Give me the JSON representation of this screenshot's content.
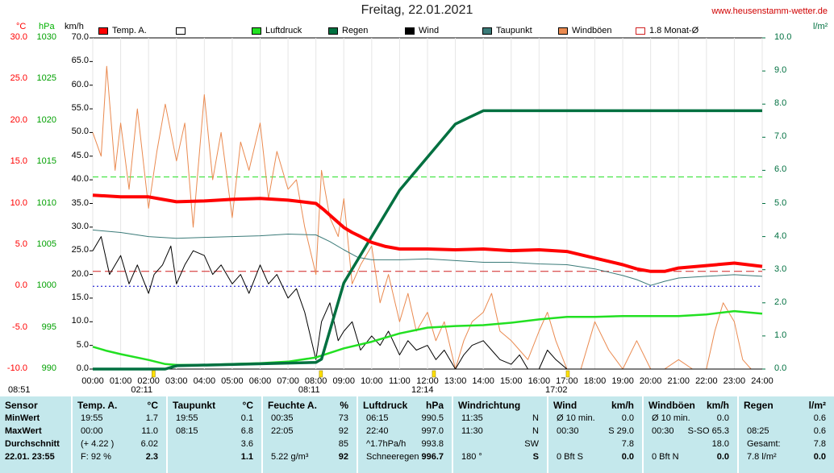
{
  "title": "Freitag, 22.01.2021",
  "site": "www.heusenstamm-wetter.de",
  "units": {
    "temp": "°C",
    "pressure": "hPa",
    "wind": "km/h",
    "rain": "l/m²"
  },
  "colors": {
    "temp": "#ff0000",
    "pressure": "#22e022",
    "rain": "#007040",
    "wind": "#000000",
    "dewpoint": "#3a7a78",
    "gusts": "#ea8a50",
    "monthavg": "#d02020"
  },
  "legend": [
    {
      "label": "Temp. A.",
      "color": "#ff0000",
      "filled": true
    },
    {
      "label": "",
      "color": "#ffffff",
      "filled": false
    },
    {
      "label": "Luftdruck",
      "color": "#22e022",
      "filled": true
    },
    {
      "label": "Regen",
      "color": "#007040",
      "filled": true
    },
    {
      "label": "Wind",
      "color": "#000000",
      "filled": true
    },
    {
      "label": "Taupunkt",
      "color": "#3a7a78",
      "filled": true
    },
    {
      "label": "Windböen",
      "color": "#ea8a50",
      "filled": true
    },
    {
      "label": "1.8 Monat-Ø",
      "color": "#d02020",
      "filled": false
    }
  ],
  "events": [
    {
      "time": "08:51",
      "hour": 0
    },
    {
      "time": "02:11",
      "hour": 2.18
    },
    {
      "time": "08:11",
      "hour": 8.18
    },
    {
      "time": "12:14",
      "hour": 12.23
    },
    {
      "time": "17:02",
      "hour": 17.03
    }
  ],
  "chart_data": {
    "type": "line",
    "x_ticks": [
      "00:00",
      "01:00",
      "02:00",
      "03:00",
      "04:00",
      "05:00",
      "06:00",
      "07:00",
      "08:00",
      "09:00",
      "10:00",
      "11:00",
      "12:00",
      "13:00",
      "14:00",
      "15:00",
      "16:00",
      "17:00",
      "18:00",
      "19:00",
      "20:00",
      "21:00",
      "22:00",
      "23:00",
      "24:00"
    ],
    "xlim": [
      0,
      24
    ],
    "axes": {
      "temp_ticks": [
        "30.0",
        "25.0",
        "20.0",
        "15.0",
        "10.0",
        "5.0",
        "0.0",
        "-5.0",
        "-10.0"
      ],
      "temp_lim": [
        -10,
        30
      ],
      "pressure_ticks": [
        "1030",
        "1025",
        "1020",
        "1015",
        "1010",
        "1005",
        "1000",
        "995",
        "990"
      ],
      "pressure_lim": [
        990,
        1030
      ],
      "wind_ticks": [
        "70.0",
        "65.0",
        "60.0",
        "55.0",
        "50.0",
        "45.0",
        "40.0",
        "35.0",
        "30.0",
        "25.0",
        "20.0",
        "15.0",
        "10.0",
        "5.0",
        "0.0"
      ],
      "wind_lim": [
        0,
        70
      ],
      "rain_ticks": [
        "10.0",
        "9.0",
        "8.0",
        "7.0",
        "6.0",
        "5.0",
        "4.0",
        "3.0",
        "2.0",
        "1.0",
        "0.0"
      ],
      "rain_lim": [
        0,
        10
      ]
    },
    "reference_lines": [
      {
        "name": "1.8 Monat-Ø",
        "axis": "temp",
        "value": 1.8,
        "color": "#d02020"
      },
      {
        "axis": "pressure",
        "value": 1013.2,
        "color": "#22e022"
      },
      {
        "axis": "temp",
        "value": 0,
        "color": "#0000cc"
      }
    ],
    "series": [
      {
        "name": "Temp. A.",
        "axis": "temp",
        "color": "#ff0000",
        "x": [
          0,
          1,
          2,
          2.5,
          3,
          4,
          5,
          6,
          7,
          7.5,
          8,
          8.3,
          8.6,
          9,
          9.3,
          9.6,
          10,
          10.5,
          11,
          12,
          13,
          14,
          15,
          16,
          17,
          18,
          19,
          19.5,
          20,
          20.5,
          21,
          22,
          23,
          24
        ],
        "y": [
          11.0,
          10.8,
          10.8,
          10.5,
          10.2,
          10.3,
          10.5,
          10.6,
          10.4,
          10.2,
          10.0,
          9.2,
          8.3,
          7.1,
          6.5,
          6.0,
          5.3,
          4.8,
          4.5,
          4.5,
          4.4,
          4.5,
          4.3,
          4.4,
          4.2,
          3.4,
          2.6,
          2.1,
          1.8,
          1.8,
          2.2,
          2.5,
          2.8,
          2.4
        ]
      },
      {
        "name": "Taupunkt",
        "axis": "temp",
        "color": "#3a7a78",
        "x": [
          0,
          1,
          2,
          3,
          4,
          5,
          6,
          7,
          8,
          8.5,
          9,
          9.5,
          10,
          11,
          12,
          13,
          14,
          15,
          16,
          17,
          18,
          19,
          19.5,
          20,
          20.5,
          21,
          22,
          23,
          24
        ],
        "y": [
          6.8,
          6.5,
          6.0,
          5.8,
          5.9,
          6.0,
          6.1,
          6.3,
          6.2,
          5.4,
          4.4,
          3.5,
          3.2,
          3.2,
          3.3,
          3.1,
          2.9,
          2.9,
          2.7,
          2.6,
          2.1,
          1.3,
          0.8,
          0.1,
          0.6,
          1.0,
          1.2,
          1.4,
          1.2
        ]
      },
      {
        "name": "Luftdruck",
        "axis": "pressure",
        "color": "#22e022",
        "x": [
          0,
          0.5,
          1,
          2,
          2.6,
          3,
          4,
          5,
          6,
          7,
          8,
          9,
          10,
          11,
          12,
          13,
          14,
          15,
          16,
          17,
          18,
          19,
          20,
          21,
          22,
          23,
          24
        ],
        "y": [
          992.7,
          992.2,
          991.8,
          991.1,
          990.6,
          990.5,
          990.5,
          990.6,
          990.7,
          990.9,
          991.4,
          992.5,
          993.3,
          994.3,
          995.0,
          995.2,
          995.3,
          995.6,
          996.0,
          996.3,
          996.3,
          996.4,
          996.4,
          996.4,
          996.6,
          997.0,
          996.7
        ]
      },
      {
        "name": "Regen",
        "axis": "rain",
        "color": "#007040",
        "x": [
          0,
          2.6,
          3,
          8,
          8.2,
          9,
          10,
          11,
          12,
          13,
          13.5,
          14,
          18,
          24
        ],
        "y": [
          0,
          0,
          0.1,
          0.2,
          0.3,
          2.6,
          4.0,
          5.4,
          6.4,
          7.4,
          7.6,
          7.8,
          7.8,
          7.8
        ]
      },
      {
        "name": "Wind",
        "axis": "wind",
        "color": "#000000",
        "x": [
          0,
          0.3,
          0.6,
          1,
          1.3,
          1.6,
          2,
          2.2,
          2.5,
          2.8,
          3,
          3.3,
          3.6,
          4,
          4.3,
          4.6,
          5,
          5.3,
          5.6,
          6,
          6.3,
          6.6,
          7,
          7.3,
          7.6,
          8,
          8.2,
          8.5,
          8.8,
          9,
          9.3,
          9.6,
          10,
          10.3,
          10.6,
          11,
          11.3,
          11.6,
          12,
          12.3,
          12.6,
          13,
          13.3,
          13.6,
          14,
          14.3,
          14.6,
          15,
          15.3,
          15.6,
          16,
          16.3,
          16.6,
          17,
          17.5,
          24
        ],
        "y": [
          25,
          28,
          20,
          24,
          18,
          22,
          16,
          20,
          22,
          26,
          18,
          22,
          25,
          24,
          20,
          22,
          18,
          20,
          16,
          22,
          18,
          20,
          15,
          17,
          12,
          2,
          10,
          14,
          6,
          8,
          10,
          4,
          7,
          5,
          8,
          3,
          6,
          4,
          5,
          2,
          4,
          0,
          3,
          5,
          6,
          4,
          2,
          1,
          3,
          0,
          0,
          4,
          2,
          0,
          0,
          0
        ]
      },
      {
        "name": "Windböen",
        "axis": "wind",
        "color": "#ea8a50",
        "x": [
          0,
          0.3,
          0.5,
          0.8,
          1,
          1.3,
          1.6,
          2,
          2.3,
          2.6,
          3,
          3.3,
          3.6,
          4,
          4.3,
          4.6,
          5,
          5.3,
          5.6,
          6,
          6.3,
          6.6,
          7,
          7.3,
          7.6,
          8,
          8.2,
          8.5,
          8.8,
          9,
          9.3,
          9.6,
          10,
          10.3,
          10.6,
          11,
          11.3,
          11.6,
          12,
          12.3,
          12.6,
          13,
          13.3,
          13.6,
          14,
          14.3,
          14.6,
          15,
          15.3,
          15.6,
          16,
          16.3,
          16.6,
          17,
          17.5,
          18,
          18.5,
          19,
          19.5,
          20,
          20.5,
          21,
          21.5,
          22,
          22.3,
          22.6,
          23,
          23.3,
          23.6,
          24
        ],
        "y": [
          50,
          45,
          64,
          42,
          52,
          38,
          55,
          34,
          46,
          56,
          44,
          52,
          30,
          58,
          40,
          50,
          32,
          48,
          42,
          52,
          36,
          46,
          38,
          40,
          30,
          20,
          42,
          32,
          28,
          36,
          18,
          22,
          26,
          14,
          20,
          10,
          16,
          8,
          12,
          6,
          10,
          0,
          6,
          10,
          12,
          16,
          8,
          6,
          4,
          2,
          8,
          12,
          6,
          0,
          0,
          10,
          4,
          0,
          6,
          0,
          0,
          2,
          0,
          0,
          8,
          14,
          10,
          2,
          0,
          0
        ]
      }
    ]
  },
  "footer": {
    "sensor": {
      "header": "Sensor",
      "rows": [
        "MinWert",
        "MaxWert",
        "Durchschnitt",
        "22.01. 23:55"
      ]
    },
    "temp": {
      "header": "Temp. A.",
      "unit": "°C",
      "rows": [
        {
          "a": "19:55",
          "b": "1.7"
        },
        {
          "a": "00:00",
          "b": "11.0"
        },
        {
          "a": "(+ 4.22 )",
          "b": "6.02"
        },
        {
          "a": "F: 92 %",
          "b": "2.3"
        }
      ]
    },
    "dew": {
      "header": "Taupunkt",
      "unit": "°C",
      "rows": [
        {
          "a": "19:55",
          "b": "0.1"
        },
        {
          "a": "08:15",
          "b": "6.8"
        },
        {
          "a": "",
          "b": "3.6"
        },
        {
          "a": "",
          "b": "1.1"
        }
      ]
    },
    "humidity": {
      "header": "Feuchte A.",
      "unit": "%",
      "rows": [
        {
          "a": "00:35",
          "b": "73"
        },
        {
          "a": "22:05",
          "b": "92"
        },
        {
          "a": "",
          "b": "85"
        },
        {
          "a": "5.22 g/m³",
          "b": "92"
        }
      ]
    },
    "pressure": {
      "header": "Luftdruck",
      "unit": "hPa",
      "rows": [
        {
          "a": "06:15",
          "b": "990.5"
        },
        {
          "a": "22:40",
          "b": "997.0"
        },
        {
          "a": "^1.7hPa/h",
          "b": "993.8"
        },
        {
          "a": "Schneeregen",
          "b": "996.7"
        }
      ]
    },
    "winddir": {
      "header": "Windrichtung",
      "unit": "",
      "rows": [
        {
          "a": "11:35",
          "b": "N"
        },
        {
          "a": "11:30",
          "b": "N"
        },
        {
          "a": "",
          "b": "SW"
        },
        {
          "a": "180 °",
          "b": "S"
        }
      ]
    },
    "wind": {
      "header": "Wind",
      "unit": "km/h",
      "rows": [
        {
          "a": "Ø 10 min.",
          "b": "0.0"
        },
        {
          "a": "00:30",
          "b": "S 29.0"
        },
        {
          "a": "",
          "b": "7.8"
        },
        {
          "a": "0 Bft S",
          "b": "0.0"
        }
      ]
    },
    "gusts": {
      "header": "Windböen",
      "unit": "km/h",
      "rows": [
        {
          "a": "Ø 10 min.",
          "b": "0.0"
        },
        {
          "a": "00:30",
          "b": "S-SO 65.3"
        },
        {
          "a": "",
          "b": "18.0"
        },
        {
          "a": "0 Bft N",
          "b": "0.0"
        }
      ]
    },
    "rain": {
      "header": "Regen",
      "unit": "l/m²",
      "rows": [
        {
          "a": "",
          "b": "0.6"
        },
        {
          "a": "08:25",
          "b": "0.6"
        },
        {
          "a": "Gesamt:",
          "b": "7.8"
        },
        {
          "a": "7.8 l/m²",
          "b": "0.0"
        }
      ]
    }
  }
}
